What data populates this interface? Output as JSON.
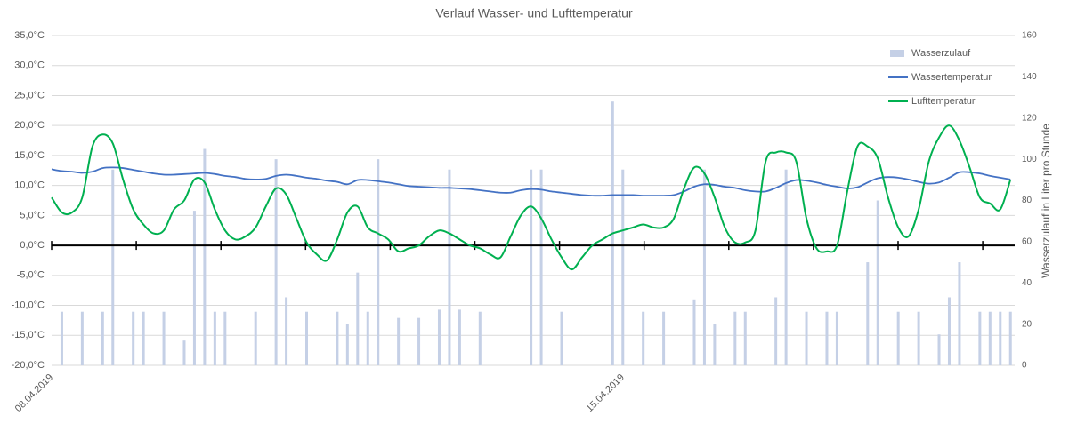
{
  "chart_data": {
    "type": "combo",
    "title": "Verlauf Wasser- und Lufttemperatur",
    "y2label": "Wasserzulauf in Liter pro Stunde",
    "categories": [
      "08.04.2019",
      null,
      null,
      null,
      null,
      null,
      null,
      null,
      null,
      null,
      null,
      null,
      null,
      null,
      null,
      null,
      null,
      null,
      null,
      null,
      null,
      null,
      null,
      null,
      null,
      null,
      null,
      null,
      null,
      null,
      null,
      null,
      null,
      null,
      null,
      null,
      null,
      null,
      null,
      null,
      null,
      null,
      null,
      null,
      null,
      null,
      null,
      null,
      null,
      null,
      null,
      null,
      null,
      null,
      null,
      null,
      "15.04.2019",
      null,
      null,
      null,
      null,
      null,
      null,
      null,
      null,
      null,
      null,
      null,
      null,
      null,
      null,
      null,
      null,
      null,
      null,
      null,
      null,
      null,
      null,
      null,
      null,
      null,
      null,
      null,
      null,
      null,
      null,
      null,
      null,
      null,
      null,
      null,
      null,
      null,
      null
    ],
    "series": [
      {
        "name": "Wasserzulauf",
        "kind": "bar",
        "axis": "y2",
        "color": "#c5d0e6",
        "values": [
          0,
          26,
          0,
          26,
          0,
          26,
          95,
          0,
          26,
          26,
          0,
          26,
          0,
          12,
          75,
          105,
          26,
          26,
          0,
          0,
          26,
          0,
          100,
          33,
          0,
          26,
          0,
          0,
          26,
          20,
          45,
          26,
          100,
          0,
          23,
          0,
          23,
          0,
          27,
          95,
          27,
          0,
          26,
          0,
          0,
          0,
          0,
          95,
          95,
          0,
          26,
          0,
          0,
          0,
          0,
          128,
          95,
          0,
          26,
          0,
          26,
          0,
          0,
          32,
          95,
          20,
          0,
          26,
          26,
          0,
          0,
          33,
          95,
          0,
          26,
          0,
          26,
          26,
          0,
          0,
          50,
          80,
          0,
          26,
          0,
          26,
          0,
          15,
          33,
          50,
          0,
          26,
          26,
          26,
          26
        ]
      },
      {
        "name": "Wassertemperatur",
        "kind": "line",
        "color": "#4472c4",
        "values": [
          12.7,
          12.4,
          12.3,
          12.1,
          12.3,
          12.9,
          13.0,
          12.9,
          12.6,
          12.3,
          12.0,
          11.8,
          11.8,
          11.9,
          12.0,
          12.1,
          11.9,
          11.6,
          11.4,
          11.1,
          11.0,
          11.1,
          11.6,
          11.8,
          11.6,
          11.3,
          11.1,
          10.8,
          10.6,
          10.2,
          10.9,
          10.9,
          10.7,
          10.5,
          10.2,
          9.9,
          9.8,
          9.7,
          9.6,
          9.6,
          9.5,
          9.4,
          9.2,
          9.0,
          8.8,
          8.8,
          9.2,
          9.4,
          9.3,
          9.0,
          8.8,
          8.6,
          8.4,
          8.3,
          8.3,
          8.4,
          8.4,
          8.4,
          8.3,
          8.3,
          8.3,
          8.4,
          9.0,
          9.8,
          10.2,
          10.1,
          9.8,
          9.6,
          9.2,
          9.0,
          9.0,
          9.6,
          10.4,
          10.9,
          10.8,
          10.5,
          10.1,
          9.8,
          9.5,
          9.7,
          10.5,
          11.2,
          11.4,
          11.3,
          11.0,
          10.6,
          10.3,
          10.5,
          11.3,
          12.2,
          12.2,
          12.0,
          11.6,
          11.3,
          11.0
        ]
      },
      {
        "name": "Lufttemperatur",
        "kind": "line",
        "color": "#00b050",
        "values": [
          8,
          5.5,
          5.5,
          8,
          16.5,
          18.5,
          17,
          11,
          6,
          3.5,
          2,
          2.5,
          6,
          7.5,
          11,
          10.5,
          6,
          2.5,
          1,
          1.5,
          3,
          6.5,
          9.5,
          8.5,
          4.5,
          0.5,
          -1.5,
          -2.5,
          1,
          5.5,
          6.5,
          3,
          2,
          1,
          -1,
          -0.5,
          0,
          1.5,
          2.5,
          2,
          1,
          0,
          -0.5,
          -1.5,
          -2,
          1.5,
          5,
          6.5,
          4.5,
          1,
          -2,
          -4,
          -2,
          0,
          1,
          2,
          2.5,
          3,
          3.5,
          3,
          3,
          4.5,
          9.5,
          13,
          12,
          8,
          3,
          0.5,
          0.5,
          2.5,
          14,
          15.5,
          15.5,
          14,
          4.5,
          -0.5,
          -1,
          0,
          9,
          16.5,
          16.5,
          14.5,
          8,
          3,
          1.5,
          6,
          14,
          18,
          20,
          17.5,
          13,
          8,
          7,
          6,
          11
        ]
      }
    ],
    "ylim": [
      -20,
      35
    ],
    "yticks": [
      {
        "value": -20,
        "label": "-20,0°C"
      },
      {
        "value": -15,
        "label": "-15,0°C"
      },
      {
        "value": -10,
        "label": "-10,0°C"
      },
      {
        "value": -5,
        "label": "-5,0°C"
      },
      {
        "value": 0,
        "label": "0,0°C"
      },
      {
        "value": 5,
        "label": "5,0°C"
      },
      {
        "value": 10,
        "label": "10,0°C"
      },
      {
        "value": 15,
        "label": "15,0°C"
      },
      {
        "value": 20,
        "label": "20,0°C"
      },
      {
        "value": 25,
        "label": "25,0°C"
      },
      {
        "value": 30,
        "label": "30,0°C"
      },
      {
        "value": 35,
        "label": "35,0°C"
      }
    ],
    "y2lim": [
      0,
      160
    ],
    "y2ticks": [
      0,
      20,
      40,
      60,
      80,
      100,
      120,
      140,
      160
    ],
    "grid": true,
    "legend": "top-right"
  }
}
